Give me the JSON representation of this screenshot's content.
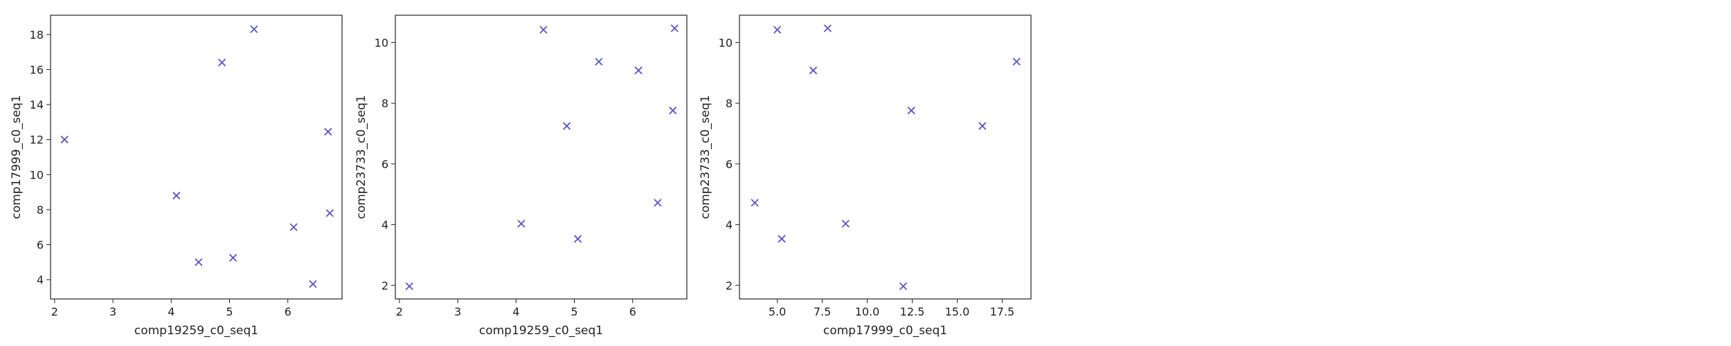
{
  "chart_data": [
    {
      "type": "scatter",
      "xlabel": "comp19259_c0_seq1",
      "ylabel": "comp17999_c0_seq1",
      "xlim": [
        1.93,
        6.93
      ],
      "ylim": [
        2.9,
        19.1
      ],
      "xticks": [
        2,
        3,
        4,
        5,
        6
      ],
      "yticks": [
        4,
        6,
        8,
        10,
        12,
        14,
        16,
        18
      ],
      "marker": "x",
      "color": "#5b55c4",
      "x": [
        2.17,
        4.09,
        4.47,
        4.87,
        5.06,
        5.42,
        6.1,
        6.43,
        6.69,
        6.72
      ],
      "y": [
        12.0,
        8.8,
        5.0,
        16.4,
        5.25,
        18.3,
        7.0,
        3.75,
        12.45,
        7.8
      ]
    },
    {
      "type": "scatter",
      "xlabel": "comp19259_c0_seq1",
      "ylabel": "comp23733_c0_seq1",
      "xlim": [
        1.93,
        6.93
      ],
      "ylim": [
        1.55,
        10.9
      ],
      "xticks": [
        2,
        3,
        4,
        5,
        6
      ],
      "yticks": [
        2,
        4,
        6,
        8,
        10
      ],
      "marker": "x",
      "color": "#5b55c4",
      "x": [
        2.17,
        4.09,
        4.47,
        4.87,
        5.06,
        5.42,
        6.1,
        6.43,
        6.69,
        6.72
      ],
      "y": [
        1.97,
        4.03,
        10.42,
        7.25,
        3.53,
        9.37,
        9.08,
        4.72,
        7.76,
        10.47
      ]
    },
    {
      "type": "scatter",
      "xlabel": "comp17999_c0_seq1",
      "ylabel": "comp23733_c0_seq1",
      "xlim": [
        2.9,
        19.1
      ],
      "ylim": [
        1.55,
        10.9
      ],
      "xticks": [
        5.0,
        7.5,
        10.0,
        12.5,
        15.0,
        17.5
      ],
      "xtick_labels": [
        "5.0",
        "7.5",
        "10.0",
        "12.5",
        "15.0",
        "17.5"
      ],
      "yticks": [
        2,
        4,
        6,
        8,
        10
      ],
      "marker": "x",
      "color": "#5b55c4",
      "x": [
        3.75,
        5.0,
        5.25,
        7.0,
        7.8,
        8.8,
        12.0,
        12.45,
        16.4,
        18.3
      ],
      "y": [
        4.72,
        10.42,
        3.53,
        9.08,
        10.47,
        4.03,
        1.97,
        7.76,
        7.25,
        9.37
      ]
    }
  ]
}
